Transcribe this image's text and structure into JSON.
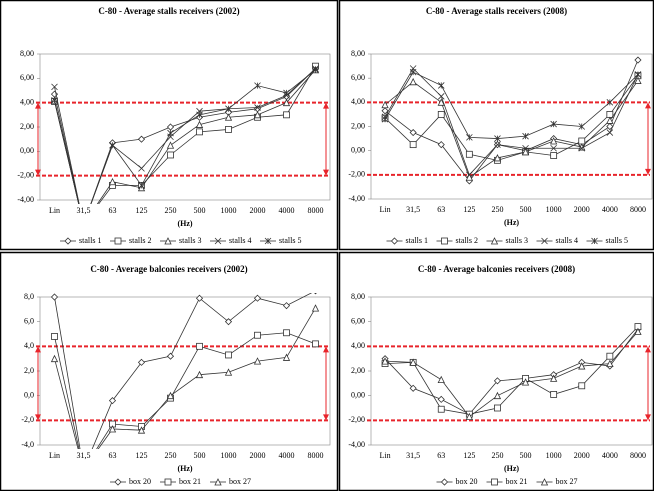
{
  "chart_data": [
    {
      "type": "line",
      "title": "C-80 - Average stalls receivers (2002)",
      "x_label": "(Hz)",
      "categories": [
        "Lin",
        "31,5",
        "63",
        "125",
        "250",
        "500",
        "1000",
        "2000",
        "4000",
        "8000"
      ],
      "ylim": [
        -4,
        8
      ],
      "yticks": [
        {
          "value": 8,
          "label": "8,00"
        },
        {
          "value": 6,
          "label": "6,00"
        },
        {
          "value": 4,
          "label": "4,00"
        },
        {
          "value": 2,
          "label": "2,00"
        },
        {
          "value": 0,
          "label": "0,00"
        },
        {
          "value": -2,
          "label": "-2,00"
        },
        {
          "value": -4,
          "label": "-4,00"
        }
      ],
      "grid": false,
      "reference_lines": [
        4,
        -2
      ],
      "reference_color": "#e8242b",
      "series": [
        {
          "name": "stalls 1",
          "color": "#333333",
          "marker": "diamond",
          "values": [
            4.7,
            -6,
            0.7,
            1.0,
            2.0,
            2.8,
            3.2,
            3.5,
            4.5,
            6.8
          ]
        },
        {
          "name": "stalls 2",
          "color": "#333333",
          "marker": "square",
          "values": [
            4.1,
            -6,
            -2.8,
            -2.8,
            -0.3,
            1.6,
            1.8,
            2.8,
            3.0,
            7.0
          ]
        },
        {
          "name": "stalls 3",
          "color": "#333333",
          "marker": "triangle",
          "values": [
            4.2,
            -6,
            -2.5,
            -3.0,
            0.5,
            2.2,
            2.8,
            3.0,
            4.0,
            6.7
          ]
        },
        {
          "name": "stalls 4",
          "color": "#333333",
          "marker": "x",
          "values": [
            5.3,
            -6,
            0.5,
            -1.4,
            1.2,
            3.3,
            3.5,
            3.6,
            4.6,
            6.8
          ]
        },
        {
          "name": "stalls 5",
          "color": "#333333",
          "marker": "star",
          "values": [
            4.2,
            -6,
            0.5,
            -2.8,
            1.5,
            3.0,
            3.5,
            5.4,
            4.8,
            6.7
          ]
        }
      ]
    },
    {
      "type": "line",
      "title": "C-80 - Average stalls receivers (2008)",
      "x_label": "(Hz)",
      "categories": [
        "Lin",
        "31,5",
        "63",
        "125",
        "250",
        "500",
        "1000",
        "2000",
        "4000",
        "8000"
      ],
      "ylim": [
        -4,
        8
      ],
      "yticks": [
        {
          "value": 8,
          "label": "8,00"
        },
        {
          "value": 6,
          "label": "6,00"
        },
        {
          "value": 4,
          "label": "4,00"
        },
        {
          "value": 2,
          "label": "2,00"
        },
        {
          "value": 0,
          "label": "0,00"
        },
        {
          "value": -2,
          "label": "-2,00"
        },
        {
          "value": -4,
          "label": "-4,00"
        }
      ],
      "grid": false,
      "reference_lines": [
        4,
        -2
      ],
      "reference_color": "#e8242b",
      "series": [
        {
          "name": "stalls 1",
          "color": "#333333",
          "marker": "diamond",
          "values": [
            3.3,
            1.5,
            0.5,
            -2.5,
            0.5,
            0.0,
            1.0,
            0.5,
            2.0,
            7.5
          ]
        },
        {
          "name": "stalls 2",
          "color": "#333333",
          "marker": "square",
          "values": [
            2.7,
            0.5,
            3.0,
            -0.3,
            -0.8,
            -0.1,
            -0.4,
            0.8,
            3.0,
            6.2
          ]
        },
        {
          "name": "stalls 3",
          "color": "#333333",
          "marker": "triangle",
          "values": [
            3.8,
            5.7,
            4.0,
            -2.2,
            -0.6,
            -0.1,
            0.8,
            0.3,
            2.5,
            5.8
          ]
        },
        {
          "name": "stalls 4",
          "color": "#333333",
          "marker": "x",
          "values": [
            2.8,
            6.8,
            4.5,
            -2.0,
            0.5,
            0.2,
            0.2,
            0.2,
            1.5,
            6.3
          ]
        },
        {
          "name": "stalls 5",
          "color": "#333333",
          "marker": "star",
          "values": [
            2.6,
            6.5,
            5.4,
            1.1,
            1.0,
            1.2,
            2.2,
            2.0,
            4.0,
            6.3
          ]
        }
      ]
    },
    {
      "type": "line",
      "title": "C-80 - Average balconies receivers (2002)",
      "x_label": "(Hz)",
      "categories": [
        "Lin",
        "31,5",
        "63",
        "125",
        "250",
        "500",
        "1000",
        "2000",
        "4000",
        "8000"
      ],
      "ylim": [
        -4,
        8
      ],
      "yticks": [
        {
          "value": 8,
          "label": "8,0"
        },
        {
          "value": 6,
          "label": "6,0"
        },
        {
          "value": 4,
          "label": "4,0"
        },
        {
          "value": 2,
          "label": "2,0"
        },
        {
          "value": 0,
          "label": "0,0"
        },
        {
          "value": -2,
          "label": "-2,0"
        },
        {
          "value": -4,
          "label": "-4,0"
        }
      ],
      "grid": false,
      "reference_lines": [
        4,
        -2
      ],
      "reference_color": "#e8242b",
      "series": [
        {
          "name": "box 20",
          "color": "#333333",
          "marker": "diamond",
          "values": [
            8.0,
            -6,
            -0.4,
            2.7,
            3.2,
            7.9,
            6.0,
            7.9,
            7.3,
            8.5
          ]
        },
        {
          "name": "box 21",
          "color": "#333333",
          "marker": "square",
          "values": [
            4.8,
            -6,
            -2.3,
            -2.5,
            -0.2,
            4.0,
            3.3,
            4.9,
            5.1,
            4.2
          ]
        },
        {
          "name": "box 27",
          "color": "#333333",
          "marker": "triangle",
          "values": [
            3.0,
            -6,
            -2.7,
            -2.8,
            0.0,
            1.7,
            1.9,
            2.8,
            3.1,
            7.1
          ]
        }
      ]
    },
    {
      "type": "line",
      "title": "C-80 - Average balconies receivers (2008)",
      "x_label": "(Hz)",
      "categories": [
        "Lin",
        "31,5",
        "63",
        "125",
        "250",
        "500",
        "1000",
        "2000",
        "4000",
        "8000"
      ],
      "ylim": [
        -4,
        8
      ],
      "yticks": [
        {
          "value": 8,
          "label": "8,00"
        },
        {
          "value": 6,
          "label": "6,00"
        },
        {
          "value": 4,
          "label": "4,00"
        },
        {
          "value": 2,
          "label": "2,00"
        },
        {
          "value": 0,
          "label": "0,00"
        },
        {
          "value": -2,
          "label": "-2,00"
        },
        {
          "value": -4,
          "label": "-4,00"
        }
      ],
      "grid": false,
      "reference_lines": [
        4,
        -2
      ],
      "reference_color": "#e8242b",
      "series": [
        {
          "name": "box 20",
          "color": "#333333",
          "marker": "diamond",
          "values": [
            3.0,
            0.6,
            -0.3,
            -1.5,
            1.2,
            1.4,
            1.7,
            2.7,
            2.4,
            5.4
          ]
        },
        {
          "name": "box 21",
          "color": "#333333",
          "marker": "square",
          "values": [
            2.6,
            2.7,
            -1.1,
            -1.5,
            -1.0,
            1.4,
            0.1,
            0.8,
            3.2,
            5.6
          ]
        },
        {
          "name": "box 27",
          "color": "#333333",
          "marker": "triangle",
          "values": [
            2.8,
            2.7,
            1.3,
            -1.7,
            0.0,
            1.1,
            1.4,
            2.4,
            2.6,
            5.2
          ]
        }
      ]
    }
  ]
}
